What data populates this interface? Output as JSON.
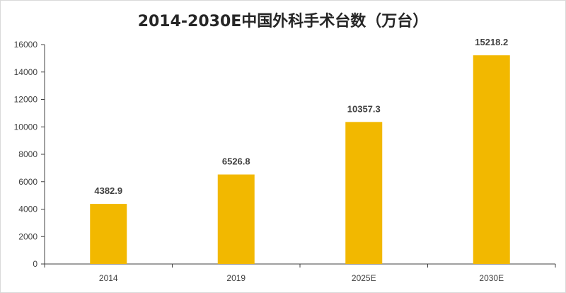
{
  "chart_data": {
    "type": "bar",
    "title": "2014-2030E中国外科手术台数（万台）",
    "categories": [
      "2014",
      "2019",
      "2025E",
      "2030E"
    ],
    "values": [
      4382.9,
      6526.8,
      10357.3,
      15218.2
    ],
    "value_labels": [
      "4382.9",
      "6526.8",
      "10357.3",
      "15218.2"
    ],
    "y_ticks": [
      "0",
      "2000",
      "4000",
      "6000",
      "8000",
      "10000",
      "12000",
      "14000",
      "16000"
    ],
    "xlabel": "",
    "ylabel": "",
    "ylim": [
      0,
      16000
    ],
    "grid": false,
    "legend": "none",
    "bar_color": "#F2B800"
  }
}
